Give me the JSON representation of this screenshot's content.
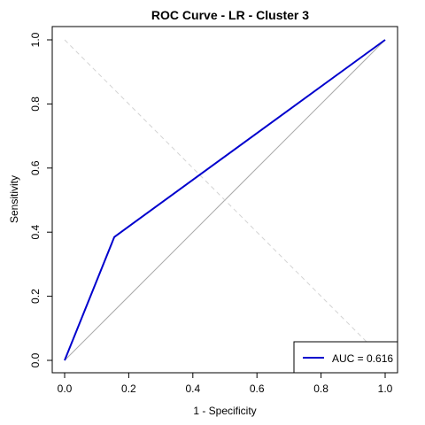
{
  "chart_data": {
    "type": "line",
    "title": "ROC Curve - LR - Cluster 3",
    "xlabel": "1 - Specificity",
    "ylabel": "Sensitivity",
    "xlim": [
      0,
      1
    ],
    "ylim": [
      0,
      1
    ],
    "x_ticks": [
      "0.0",
      "0.2",
      "0.4",
      "0.6",
      "0.8",
      "1.0"
    ],
    "y_ticks": [
      "0.0",
      "0.2",
      "0.4",
      "0.6",
      "0.8",
      "1.0"
    ],
    "grid": false,
    "legend_position": "bottom-right",
    "legend_label": "AUC = 0.616",
    "series": [
      {
        "color": "#0000CD",
        "x": [
          0.0,
          0.155,
          1.0
        ],
        "y": [
          0.0,
          0.385,
          1.0
        ]
      }
    ],
    "reference_lines": [
      {
        "style": "solid",
        "color": "#A9A9A9",
        "x": [
          0,
          1
        ],
        "y": [
          0,
          1
        ]
      },
      {
        "style": "dashed",
        "color": "#D3D3D3",
        "x": [
          0,
          1
        ],
        "y": [
          1,
          0
        ]
      }
    ]
  }
}
